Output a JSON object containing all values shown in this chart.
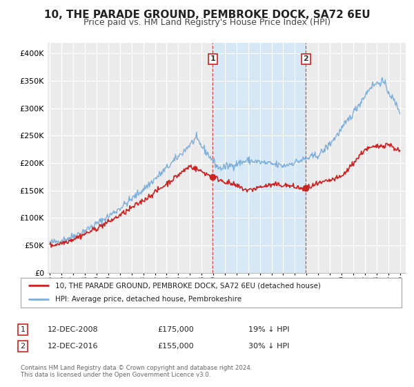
{
  "title": "10, THE PARADE GROUND, PEMBROKE DOCK, SA72 6EU",
  "subtitle": "Price paid vs. HM Land Registry's House Price Index (HPI)",
  "title_fontsize": 11,
  "subtitle_fontsize": 9,
  "background_color": "#ffffff",
  "plot_bg_color": "#ebebeb",
  "grid_color": "#ffffff",
  "hpi_color": "#7aaddb",
  "price_color": "#cc2222",
  "marker1_date": 2008.95,
  "marker2_date": 2016.95,
  "marker1_price": 175000,
  "marker2_price": 155000,
  "shade_start": 2008.95,
  "shade_end": 2016.95,
  "shade_color": "#d6e8f5",
  "legend_label_price": "10, THE PARADE GROUND, PEMBROKE DOCK, SA72 6EU (detached house)",
  "legend_label_hpi": "HPI: Average price, detached house, Pembrokeshire",
  "note1_label": "1",
  "note1_date": "12-DEC-2008",
  "note1_price": "£175,000",
  "note1_pct": "19% ↓ HPI",
  "note2_label": "2",
  "note2_date": "12-DEC-2016",
  "note2_price": "£155,000",
  "note2_pct": "30% ↓ HPI",
  "footer": "Contains HM Land Registry data © Crown copyright and database right 2024.\nThis data is licensed under the Open Government Licence v3.0.",
  "ylim": [
    0,
    420000
  ],
  "xlim_start": 1994.8,
  "xlim_end": 2025.5
}
